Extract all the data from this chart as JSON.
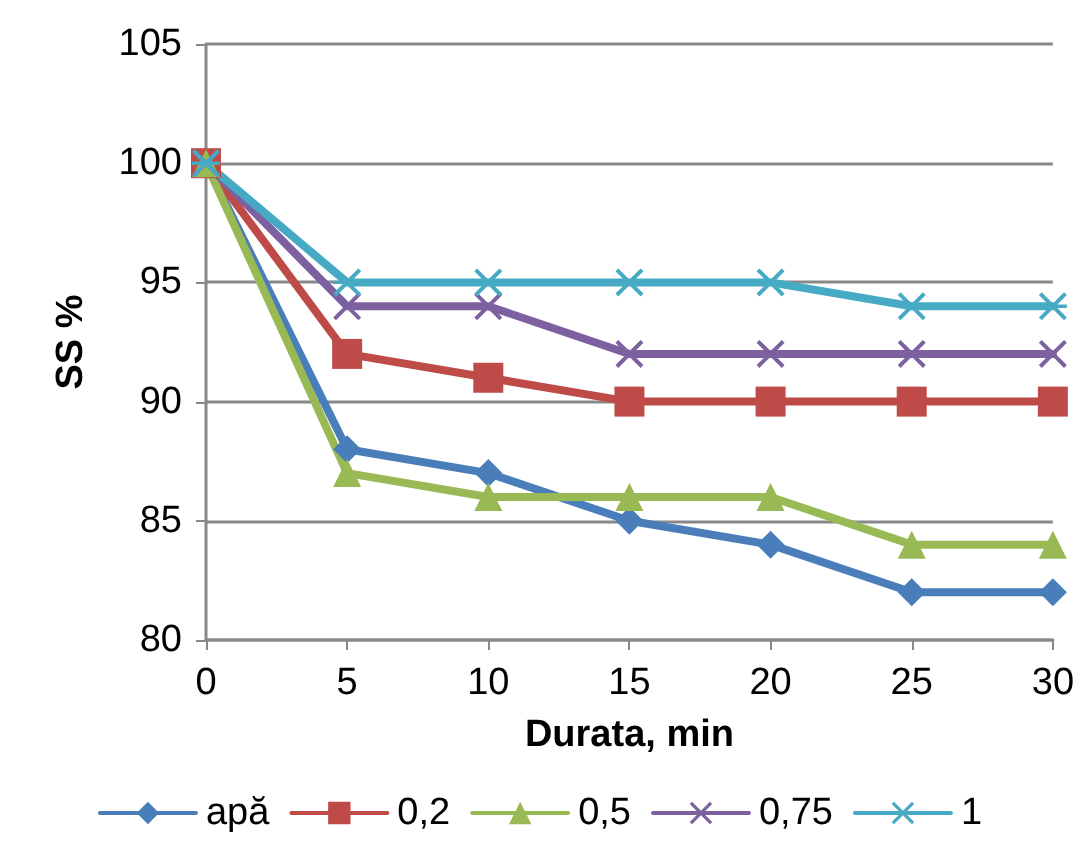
{
  "chart_data": {
    "type": "line",
    "xlabel": "Durata, min",
    "ylabel": "SS %",
    "categories": [
      "0",
      "5",
      "10",
      "15",
      "20",
      "25",
      "30"
    ],
    "series": [
      {
        "name": "apă",
        "color": "#4a7ebb",
        "marker": "diamond",
        "values": [
          100,
          88,
          87,
          85,
          84,
          82,
          82
        ]
      },
      {
        "name": "0,2",
        "color": "#be4b48",
        "marker": "square",
        "values": [
          100,
          92,
          91,
          90,
          90,
          90,
          90
        ]
      },
      {
        "name": "0,5",
        "color": "#98b954",
        "marker": "triangle",
        "values": [
          100,
          87,
          86,
          86,
          86,
          84,
          84
        ]
      },
      {
        "name": "0,75",
        "color": "#7d60a0",
        "marker": "cross",
        "values": [
          100,
          94,
          94,
          92,
          92,
          92,
          92
        ]
      },
      {
        "name": "1",
        "color": "#46aac5",
        "marker": "star",
        "values": [
          100,
          95,
          95,
          95,
          95,
          94,
          94
        ]
      }
    ],
    "ylim": [
      80,
      105
    ],
    "yticks": [
      80,
      85,
      90,
      95,
      100,
      105
    ],
    "grid": "y",
    "legend": "bottom",
    "line_style": "solid"
  }
}
